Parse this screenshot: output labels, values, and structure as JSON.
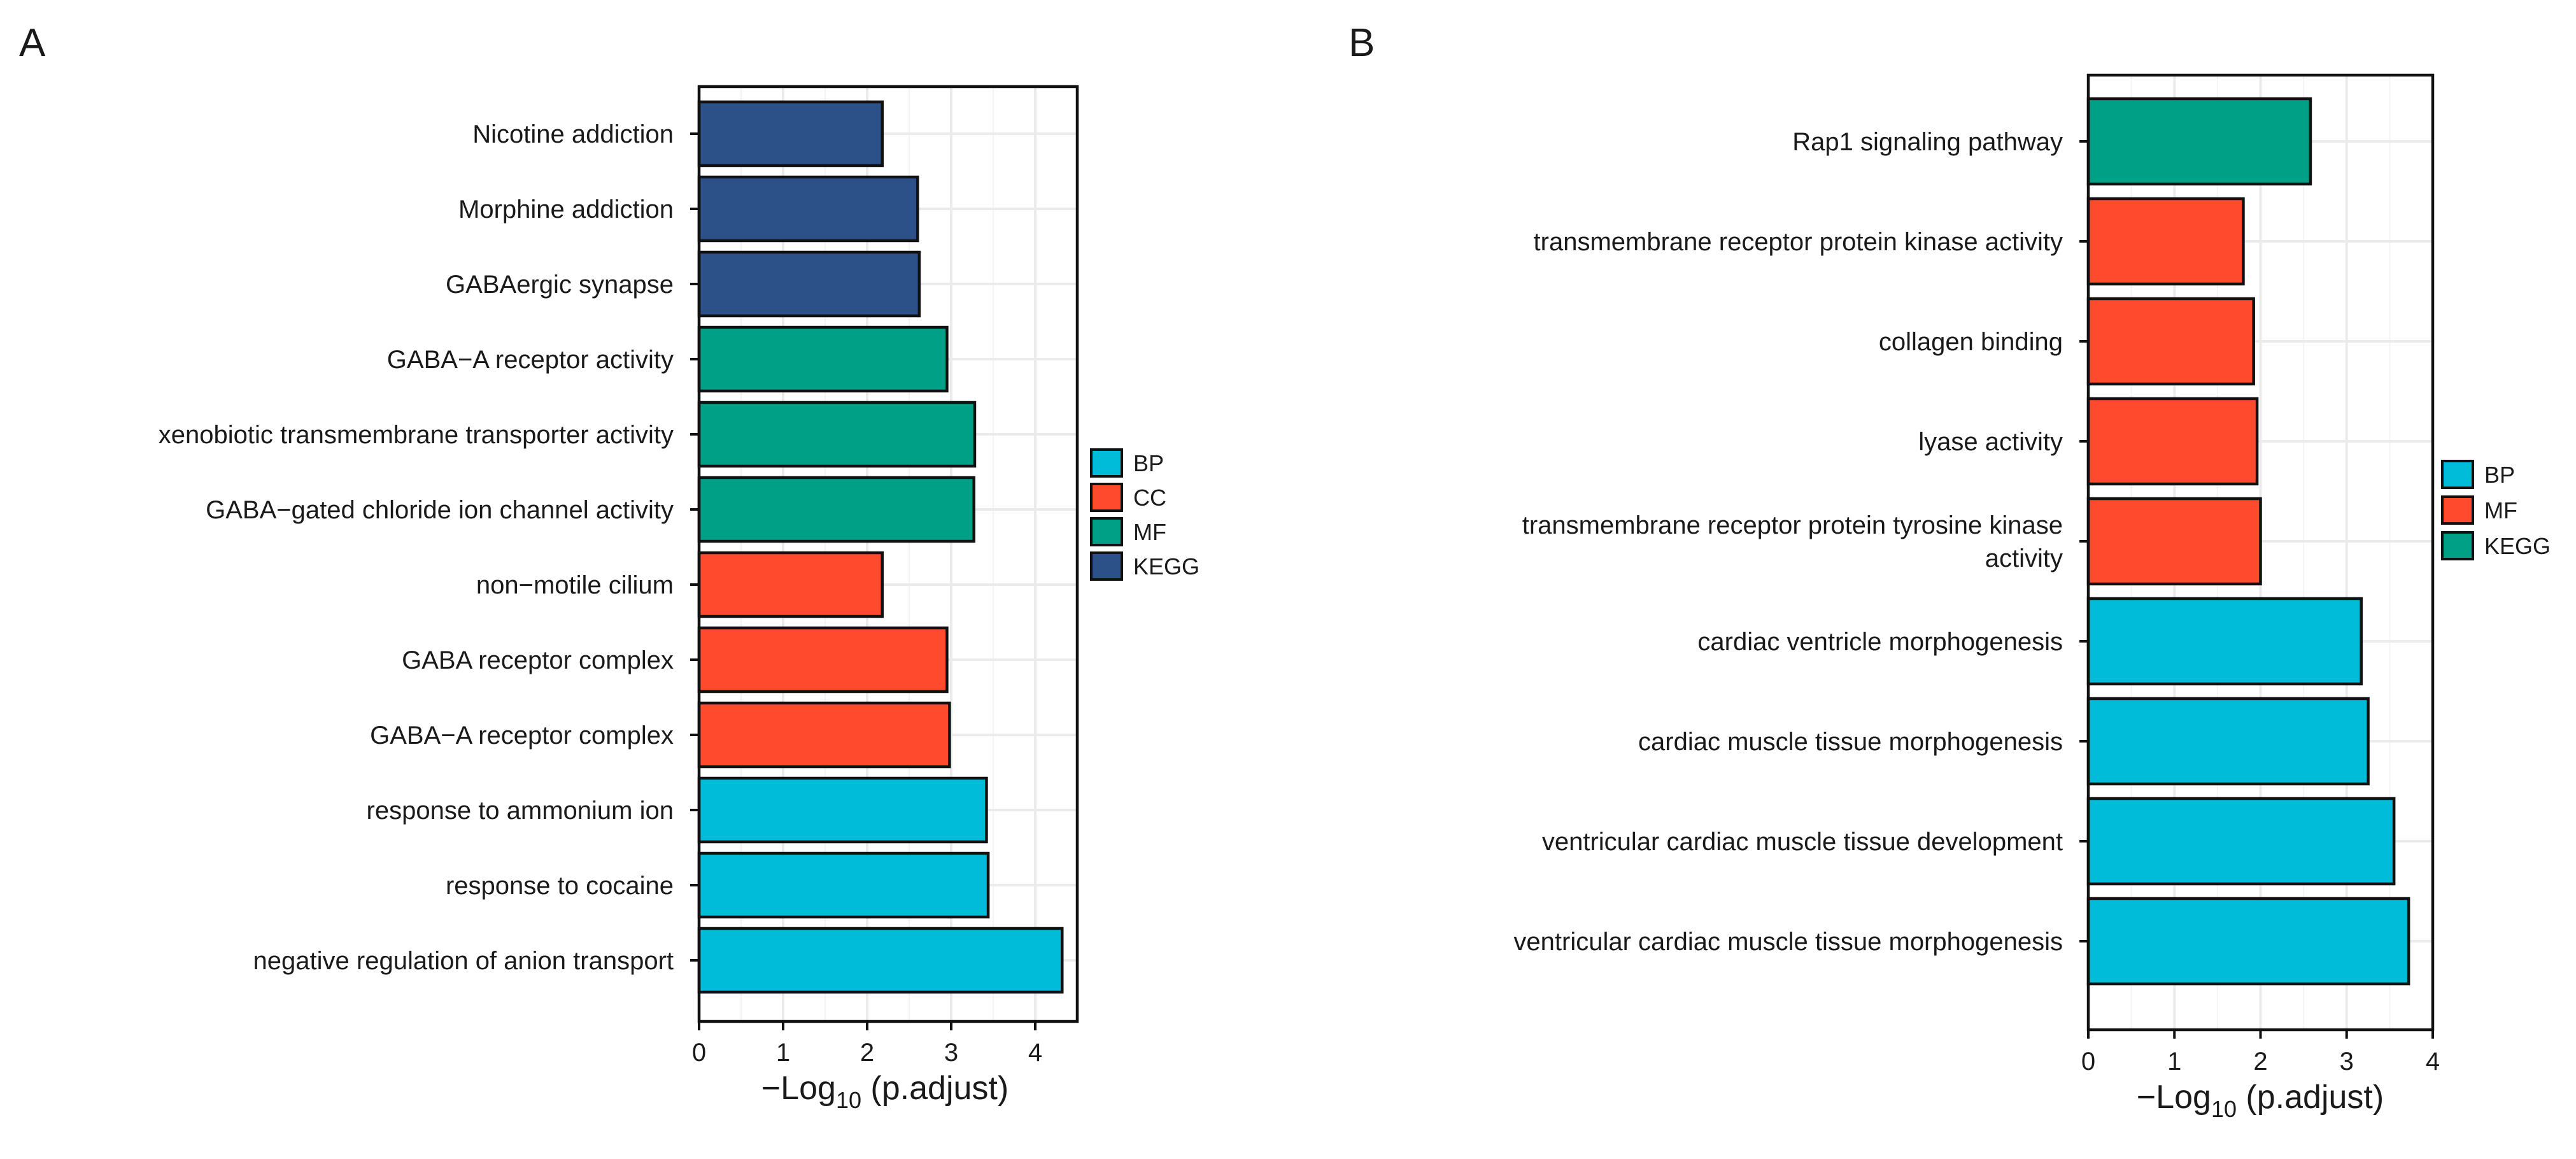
{
  "chart_data": [
    {
      "panel": "A",
      "type": "bar",
      "orientation": "horizontal",
      "categories": [
        "Nicotine addiction",
        "Morphine addiction",
        "GABAergic synapse",
        "GABA−A receptor activity",
        "xenobiotic transmembrane transporter activity",
        "GABA−gated chloride ion channel activity",
        "non−motile cilium",
        "GABA receptor complex",
        "GABA−A receptor complex",
        "response to ammonium ion",
        "response to cocaine",
        "negative regulation of anion transport"
      ],
      "values": [
        2.18,
        2.6,
        2.62,
        2.95,
        3.28,
        3.27,
        2.18,
        2.95,
        2.98,
        3.42,
        3.44,
        4.32
      ],
      "groups": [
        "KEGG",
        "KEGG",
        "KEGG",
        "MF",
        "MF",
        "MF",
        "CC",
        "CC",
        "CC",
        "BP",
        "BP",
        "BP"
      ],
      "xlabel_prefix": "−Log",
      "xlabel_sub": "10",
      "xlabel_suffix": " (p.adjust)",
      "xlim": [
        0,
        4.5
      ],
      "xticks": [
        0,
        1,
        2,
        3,
        4
      ],
      "grid": true,
      "legend": {
        "placement": "right",
        "entries": [
          {
            "label": "BP",
            "color": "#00BCD8"
          },
          {
            "label": "CC",
            "color": "#FF4A2E"
          },
          {
            "label": "MF",
            "color": "#00A087"
          },
          {
            "label": "KEGG",
            "color": "#2C5088"
          }
        ]
      }
    },
    {
      "panel": "B",
      "type": "bar",
      "orientation": "horizontal",
      "categories": [
        "Rap1 signaling pathway",
        "transmembrane receptor protein kinase activity",
        "collagen binding",
        "lyase activity",
        "transmembrane receptor protein tyrosine kinase activity",
        "cardiac ventricle morphogenesis",
        "cardiac muscle tissue morphogenesis",
        "ventricular cardiac muscle tissue development",
        "ventricular cardiac muscle tissue morphogenesis"
      ],
      "category_lines": [
        [
          "Rap1 signaling pathway"
        ],
        [
          "transmembrane receptor protein kinase activity"
        ],
        [
          "collagen binding"
        ],
        [
          "lyase activity"
        ],
        [
          "transmembrane receptor protein tyrosine kinase",
          "activity"
        ],
        [
          "cardiac ventricle morphogenesis"
        ],
        [
          "cardiac muscle tissue morphogenesis"
        ],
        [
          "ventricular cardiac muscle tissue development"
        ],
        [
          "ventricular cardiac muscle tissue morphogenesis"
        ]
      ],
      "values": [
        2.58,
        1.8,
        1.92,
        1.96,
        2.0,
        3.17,
        3.25,
        3.55,
        3.72
      ],
      "groups": [
        "KEGG",
        "MF",
        "MF",
        "MF",
        "MF",
        "BP",
        "BP",
        "BP",
        "BP"
      ],
      "xlabel_prefix": "−Log",
      "xlabel_sub": "10",
      "xlabel_suffix": " (p.adjust)",
      "xlim": [
        0,
        4
      ],
      "xticks": [
        0,
        1,
        2,
        3,
        4
      ],
      "grid": true,
      "legend": {
        "placement": "right",
        "entries": [
          {
            "label": "BP",
            "color": "#00BCD8"
          },
          {
            "label": "MF",
            "color": "#FF4A2E"
          },
          {
            "label": "KEGG",
            "color": "#00A087"
          }
        ]
      }
    }
  ]
}
